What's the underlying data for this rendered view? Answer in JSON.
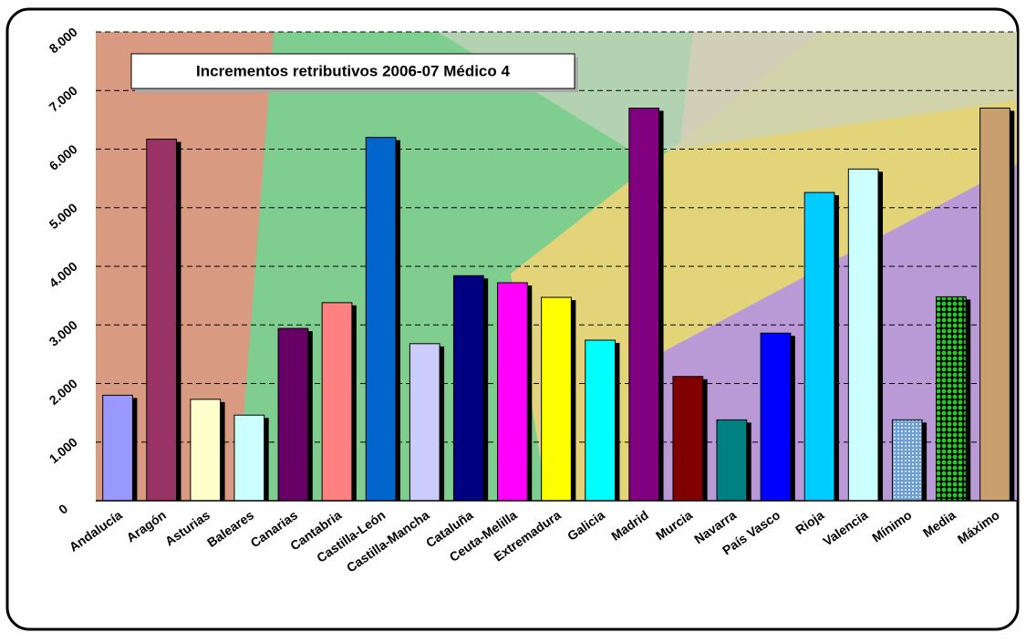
{
  "chart_data": {
    "type": "bar",
    "title": "Incrementos retributivos 2006-07 Médico 4",
    "categories": [
      "Andalucía",
      "Aragón",
      "Asturias",
      "Baleares",
      "Canarias",
      "Cantabria",
      "Castilla-León",
      "Castilla-Mancha",
      "Cataluña",
      "Ceuta-Melilla",
      "Extremadura",
      "Galicia",
      "Madrid",
      "Murcia",
      "Navarra",
      "País Vasco",
      "Rioja",
      "Valencia",
      "Mínimo",
      "Media",
      "Máximo"
    ],
    "values": [
      1800,
      6170,
      1730,
      1460,
      2940,
      3380,
      6200,
      2680,
      3840,
      3720,
      3470,
      2740,
      6700,
      2120,
      1380,
      2860,
      5260,
      5660,
      1380,
      3480,
      6700
    ],
    "colors": [
      "#9999ff",
      "#993366",
      "#ffffcc",
      "#ccffff",
      "#660066",
      "#ff8080",
      "#0066cc",
      "#ccccff",
      "#000080",
      "#ff00ff",
      "#ffff00",
      "#00ffff",
      "#800080",
      "#800000",
      "#008080",
      "#0000ff",
      "#00ccff",
      "#ccffff",
      "#6f9fd0",
      "#22cc22",
      "#c8a070"
    ],
    "ylim": [
      0,
      8000
    ],
    "yticks": [
      0,
      {
        "value": 1000,
        "label": "1.000"
      },
      {
        "value": 2000,
        "label": "2.000"
      },
      {
        "value": 3000,
        "label": "3.000"
      },
      {
        "value": 4000,
        "label": "4.000"
      },
      {
        "value": 5000,
        "label": "5.000"
      },
      {
        "value": 6000,
        "label": "6.000"
      },
      {
        "value": 7000,
        "label": "7.000"
      },
      {
        "value": 8000,
        "label": "8.000"
      }
    ],
    "grid": true
  }
}
